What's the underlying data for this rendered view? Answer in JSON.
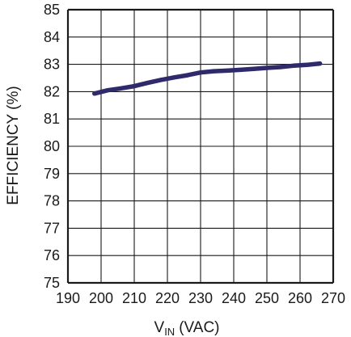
{
  "chart_data": {
    "type": "line",
    "title": "",
    "xlabel": "V",
    "xlabel_subscript": "IN",
    "xlabel_unit": "(VAC)",
    "ylabel": "EFFICIENCY (%)",
    "xlim": [
      190,
      270
    ],
    "ylim": [
      75,
      85
    ],
    "xticks": [
      190,
      200,
      210,
      220,
      230,
      240,
      250,
      260,
      270
    ],
    "yticks": [
      75,
      76,
      77,
      78,
      79,
      80,
      81,
      82,
      83,
      84,
      85
    ],
    "grid": true,
    "series_color": "#2e2a6b",
    "grid_color": "#1a1a1a",
    "series": [
      {
        "x": [
          198,
          202,
          206,
          210,
          214,
          218,
          222,
          226,
          230,
          234,
          238,
          242,
          246,
          250,
          254,
          258,
          262,
          266
        ],
        "y": [
          81.93,
          82.05,
          82.12,
          82.2,
          82.32,
          82.43,
          82.52,
          82.6,
          82.7,
          82.75,
          82.77,
          82.8,
          82.83,
          82.87,
          82.9,
          82.95,
          82.98,
          83.03
        ]
      }
    ]
  }
}
